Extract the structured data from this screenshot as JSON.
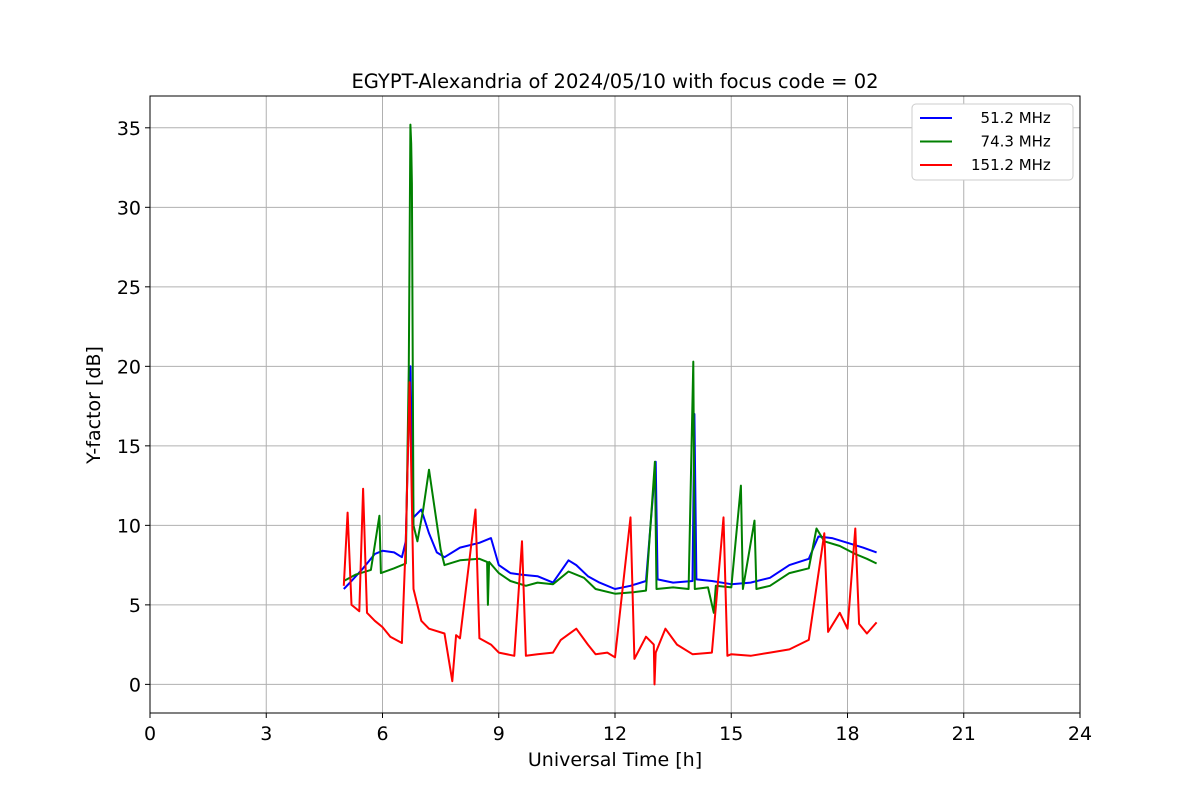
{
  "chart_data": {
    "type": "line",
    "title": "EGYPT-Alexandria of 2024/05/10 with focus code = 02",
    "xlabel": "Universal Time [h]",
    "ylabel": "Y-factor [dB]",
    "xlim": [
      0,
      24
    ],
    "ylim": [
      -1.8,
      37
    ],
    "xticks": [
      0,
      3,
      6,
      9,
      12,
      15,
      18,
      21,
      24
    ],
    "yticks": [
      0,
      5,
      10,
      15,
      20,
      25,
      30,
      35
    ],
    "grid": true,
    "legend_position": "top-right",
    "series": [
      {
        "name": "  51.2 MHz",
        "color": "#0000ff",
        "points": [
          [
            5.0,
            6.0
          ],
          [
            5.2,
            6.5
          ],
          [
            5.5,
            7.3
          ],
          [
            5.8,
            8.2
          ],
          [
            6.0,
            8.4
          ],
          [
            6.3,
            8.3
          ],
          [
            6.5,
            8.0
          ],
          [
            6.6,
            9.0
          ],
          [
            6.68,
            17.0
          ],
          [
            6.72,
            20.0
          ],
          [
            6.76,
            15.0
          ],
          [
            6.8,
            10.5
          ],
          [
            7.0,
            11.0
          ],
          [
            7.2,
            9.5
          ],
          [
            7.4,
            8.3
          ],
          [
            7.6,
            8.0
          ],
          [
            8.0,
            8.6
          ],
          [
            8.5,
            8.9
          ],
          [
            8.8,
            9.2
          ],
          [
            9.0,
            7.5
          ],
          [
            9.3,
            7.0
          ],
          [
            9.6,
            6.9
          ],
          [
            10.0,
            6.8
          ],
          [
            10.4,
            6.4
          ],
          [
            10.8,
            7.8
          ],
          [
            11.0,
            7.5
          ],
          [
            11.3,
            6.8
          ],
          [
            11.6,
            6.4
          ],
          [
            12.0,
            6.0
          ],
          [
            12.4,
            6.2
          ],
          [
            12.8,
            6.5
          ],
          [
            13.05,
            14.0
          ],
          [
            13.1,
            6.6
          ],
          [
            13.5,
            6.4
          ],
          [
            14.0,
            6.5
          ],
          [
            14.05,
            17.0
          ],
          [
            14.1,
            6.6
          ],
          [
            14.5,
            6.5
          ],
          [
            15.0,
            6.3
          ],
          [
            15.5,
            6.4
          ],
          [
            16.0,
            6.7
          ],
          [
            16.5,
            7.5
          ],
          [
            17.0,
            7.9
          ],
          [
            17.25,
            9.3
          ],
          [
            17.6,
            9.2
          ],
          [
            18.0,
            8.9
          ],
          [
            18.4,
            8.6
          ],
          [
            18.75,
            8.3
          ]
        ]
      },
      {
        "name": "  74.3 MHz",
        "color": "#008000",
        "points": [
          [
            5.0,
            6.5
          ],
          [
            5.3,
            6.9
          ],
          [
            5.7,
            7.2
          ],
          [
            5.92,
            10.6
          ],
          [
            5.96,
            7.0
          ],
          [
            6.3,
            7.3
          ],
          [
            6.6,
            7.6
          ],
          [
            6.68,
            20.0
          ],
          [
            6.72,
            35.2
          ],
          [
            6.74,
            34.0
          ],
          [
            6.76,
            31.5
          ],
          [
            6.8,
            10.0
          ],
          [
            6.9,
            9.0
          ],
          [
            7.05,
            11.0
          ],
          [
            7.2,
            13.5
          ],
          [
            7.35,
            11.0
          ],
          [
            7.5,
            8.5
          ],
          [
            7.6,
            7.5
          ],
          [
            8.0,
            7.8
          ],
          [
            8.5,
            7.9
          ],
          [
            8.7,
            7.7
          ],
          [
            8.72,
            5.0
          ],
          [
            8.75,
            7.7
          ],
          [
            9.0,
            7.0
          ],
          [
            9.3,
            6.5
          ],
          [
            9.7,
            6.2
          ],
          [
            10.0,
            6.4
          ],
          [
            10.4,
            6.3
          ],
          [
            10.8,
            7.1
          ],
          [
            11.2,
            6.7
          ],
          [
            11.5,
            6.0
          ],
          [
            12.0,
            5.7
          ],
          [
            12.5,
            5.8
          ],
          [
            12.8,
            5.9
          ],
          [
            13.03,
            14.0
          ],
          [
            13.07,
            6.0
          ],
          [
            13.5,
            6.1
          ],
          [
            13.9,
            6.0
          ],
          [
            14.02,
            20.3
          ],
          [
            14.06,
            6.0
          ],
          [
            14.4,
            6.1
          ],
          [
            14.55,
            4.5
          ],
          [
            14.6,
            6.2
          ],
          [
            15.0,
            6.1
          ],
          [
            15.25,
            12.5
          ],
          [
            15.3,
            6.0
          ],
          [
            15.6,
            10.3
          ],
          [
            15.65,
            6.0
          ],
          [
            16.0,
            6.2
          ],
          [
            16.5,
            7.0
          ],
          [
            17.0,
            7.3
          ],
          [
            17.2,
            9.8
          ],
          [
            17.4,
            9.0
          ],
          [
            17.8,
            8.7
          ],
          [
            18.2,
            8.2
          ],
          [
            18.5,
            7.9
          ],
          [
            18.75,
            7.6
          ]
        ]
      },
      {
        "name": "151.2 MHz",
        "color": "#ff0000",
        "points": [
          [
            5.0,
            6.2
          ],
          [
            5.1,
            10.8
          ],
          [
            5.2,
            5.0
          ],
          [
            5.3,
            4.8
          ],
          [
            5.4,
            4.6
          ],
          [
            5.5,
            12.3
          ],
          [
            5.6,
            4.5
          ],
          [
            5.8,
            4.0
          ],
          [
            6.0,
            3.6
          ],
          [
            6.2,
            3.0
          ],
          [
            6.5,
            2.6
          ],
          [
            6.6,
            9.0
          ],
          [
            6.7,
            19.0
          ],
          [
            6.8,
            6.0
          ],
          [
            7.0,
            4.0
          ],
          [
            7.2,
            3.5
          ],
          [
            7.6,
            3.2
          ],
          [
            7.8,
            0.2
          ],
          [
            7.9,
            3.1
          ],
          [
            8.0,
            2.9
          ],
          [
            8.4,
            11.0
          ],
          [
            8.5,
            2.9
          ],
          [
            8.8,
            2.5
          ],
          [
            9.0,
            2.0
          ],
          [
            9.4,
            1.8
          ],
          [
            9.6,
            9.0
          ],
          [
            9.7,
            1.8
          ],
          [
            10.0,
            1.9
          ],
          [
            10.4,
            2.0
          ],
          [
            10.6,
            2.8
          ],
          [
            11.0,
            3.5
          ],
          [
            11.3,
            2.5
          ],
          [
            11.5,
            1.9
          ],
          [
            11.8,
            2.0
          ],
          [
            12.0,
            1.7
          ],
          [
            12.4,
            10.5
          ],
          [
            12.5,
            1.6
          ],
          [
            12.8,
            3.0
          ],
          [
            13.0,
            2.5
          ],
          [
            13.02,
            0.0
          ],
          [
            13.05,
            2.0
          ],
          [
            13.3,
            3.5
          ],
          [
            13.6,
            2.5
          ],
          [
            14.0,
            1.9
          ],
          [
            14.5,
            2.0
          ],
          [
            14.8,
            10.5
          ],
          [
            14.9,
            1.8
          ],
          [
            15.0,
            1.9
          ],
          [
            15.5,
            1.8
          ],
          [
            16.0,
            2.0
          ],
          [
            16.5,
            2.2
          ],
          [
            17.0,
            2.8
          ],
          [
            17.4,
            9.5
          ],
          [
            17.5,
            3.3
          ],
          [
            17.8,
            4.5
          ],
          [
            18.0,
            3.5
          ],
          [
            18.2,
            9.8
          ],
          [
            18.3,
            3.8
          ],
          [
            18.5,
            3.2
          ],
          [
            18.75,
            3.9
          ]
        ]
      }
    ]
  }
}
